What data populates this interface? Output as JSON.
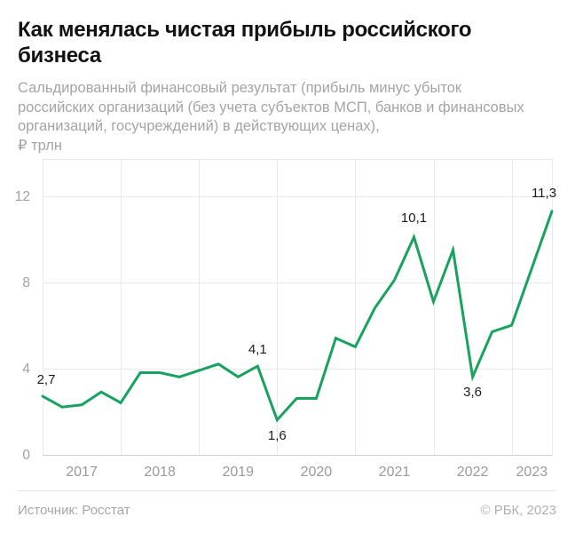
{
  "header": {
    "title_lines": [
      "Как менялась чистая прибыль российского",
      "бизнеса"
    ],
    "subtitle_lines": [
      "Сальдированный финансовый результат (прибыль минус убыток",
      "российских организаций (без учета субъектов МСП, банков и финансовых",
      "организаций, госучреждений) в действующих ценах),",
      "₽ трлн"
    ]
  },
  "footer": {
    "source": "Источник: Росстат",
    "copyright": "© РБК, 2023"
  },
  "chart_data": {
    "type": "line",
    "title": "Как менялась чистая прибыль российского бизнеса",
    "subtitle": "Сальдированный финансовый результат (прибыль минус убыток российских организаций (без учета субъектов МСП, банков и финансовых организаций, госучреждений) в действующих ценах), ₽ трлн",
    "ylabel": "₽ трлн",
    "xlabel": "",
    "grid": true,
    "legend": "none",
    "line_color": "#17a35e",
    "grid_color": "#e9e9e9",
    "zero_line_color": "#cfcfcf",
    "xlim": [
      2017,
      2023.515
    ],
    "ylim": [
      0,
      13.73
    ],
    "y_ticks": [
      0,
      4,
      8,
      12
    ],
    "x_ticks": [
      2017,
      2018,
      2019,
      2020,
      2021,
      2022,
      2023
    ],
    "x_tick_labels": [
      "2017",
      "2018",
      "2019",
      "2020",
      "2021",
      "2022",
      "2023"
    ],
    "points": [
      {
        "x": 2017.0,
        "y": 2.7,
        "label": "2,7",
        "label_pos": "above",
        "label_dx": 4
      },
      {
        "x": 2017.25,
        "y": 2.2
      },
      {
        "x": 2017.5,
        "y": 2.3
      },
      {
        "x": 2017.75,
        "y": 2.9
      },
      {
        "x": 2018.0,
        "y": 2.4
      },
      {
        "x": 2018.25,
        "y": 3.8
      },
      {
        "x": 2018.5,
        "y": 3.8
      },
      {
        "x": 2018.75,
        "y": 3.6
      },
      {
        "x": 2019.0,
        "y": 3.9
      },
      {
        "x": 2019.25,
        "y": 4.2
      },
      {
        "x": 2019.5,
        "y": 3.6
      },
      {
        "x": 2019.75,
        "y": 4.1,
        "label": "4,1",
        "label_pos": "above"
      },
      {
        "x": 2020.0,
        "y": 1.6,
        "label": "1,6",
        "label_pos": "below"
      },
      {
        "x": 2020.25,
        "y": 2.6
      },
      {
        "x": 2020.5,
        "y": 2.6
      },
      {
        "x": 2020.75,
        "y": 5.4
      },
      {
        "x": 2021.0,
        "y": 5.0
      },
      {
        "x": 2021.25,
        "y": 6.8
      },
      {
        "x": 2021.5,
        "y": 8.1
      },
      {
        "x": 2021.75,
        "y": 10.1,
        "label": "10,1",
        "label_pos": "above",
        "label_dy": -3
      },
      {
        "x": 2022.0,
        "y": 7.1
      },
      {
        "x": 2022.25,
        "y": 9.5
      },
      {
        "x": 2022.5,
        "y": 3.6,
        "label": "3,6",
        "label_pos": "below"
      },
      {
        "x": 2022.75,
        "y": 5.7
      },
      {
        "x": 2023.0,
        "y": 6.0
      },
      {
        "x": 2023.515,
        "y": 11.3,
        "label": "11,3",
        "label_pos": "above",
        "label_dx": -9,
        "label_dy": -2
      }
    ]
  }
}
